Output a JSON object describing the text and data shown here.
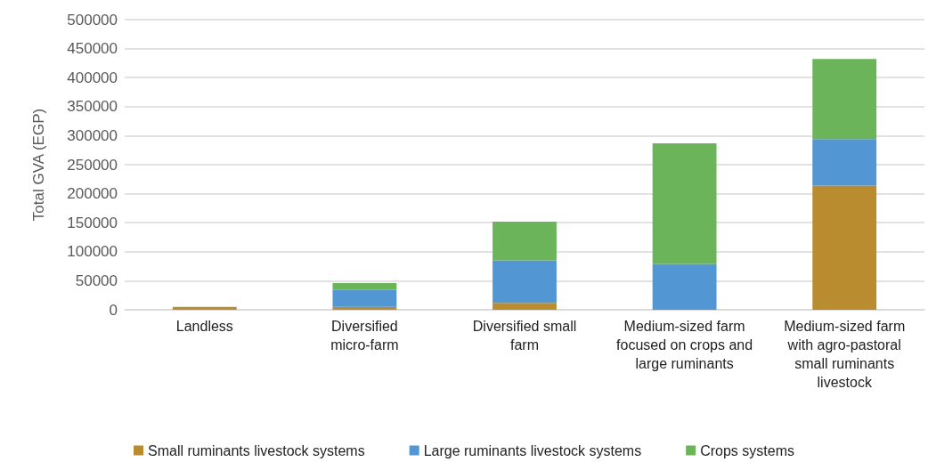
{
  "chart_data": {
    "type": "bar",
    "stacked": true,
    "ylabel": "Total GVA (EGP)",
    "categories": [
      "Landless",
      "Diversified micro-farm",
      "Diversified small farm",
      "Medium-sized farm focused on crops and large ruminants",
      "Medium-sized farm with agro-pastoral small ruminants livestock"
    ],
    "series": [
      {
        "name": "Small ruminants livestock systems",
        "color": "#b98d2f",
        "values": [
          5000,
          5000,
          12000,
          0,
          214000
        ]
      },
      {
        "name": "Large ruminants livestock systems",
        "color": "#5296d3",
        "values": [
          0,
          29000,
          73000,
          79000,
          80000
        ]
      },
      {
        "name": "Crops systems",
        "color": "#6bb45a",
        "values": [
          0,
          12000,
          67000,
          208000,
          138000
        ]
      }
    ],
    "ylim": [
      0,
      500000
    ],
    "yticks": [
      0,
      50000,
      100000,
      150000,
      200000,
      250000,
      300000,
      350000,
      400000,
      450000,
      500000
    ],
    "grid": "y",
    "legend": "bottom"
  }
}
